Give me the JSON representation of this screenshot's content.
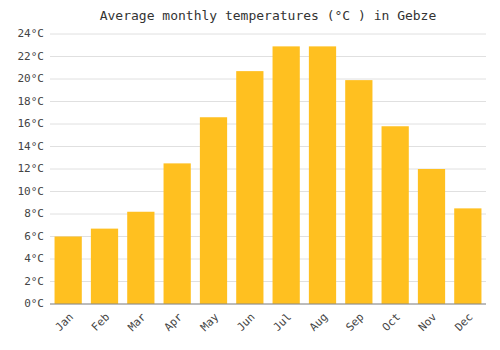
{
  "chart_data": {
    "type": "bar",
    "title": "Average monthly temperatures (°C ) in Gebze",
    "categories": [
      "Jan",
      "Feb",
      "Mar",
      "Apr",
      "May",
      "Jun",
      "Jul",
      "Aug",
      "Sep",
      "Oct",
      "Nov",
      "Dec"
    ],
    "values": [
      6.0,
      6.7,
      8.2,
      12.5,
      16.6,
      20.7,
      22.9,
      22.9,
      19.9,
      15.8,
      12.0,
      8.5
    ],
    "color": "#FFC020",
    "ylim": [
      0,
      24
    ],
    "yticks": [
      {
        "value": 0,
        "label": "0°C"
      },
      {
        "value": 2,
        "label": "2°C"
      },
      {
        "value": 4,
        "label": "4°C"
      },
      {
        "value": 6,
        "label": "6°C"
      },
      {
        "value": 8,
        "label": "8°C"
      },
      {
        "value": 10,
        "label": "10°C"
      },
      {
        "value": 12,
        "label": "12°C"
      },
      {
        "value": 14,
        "label": "14°C"
      },
      {
        "value": 16,
        "label": "16°C"
      },
      {
        "value": 18,
        "label": "18°C"
      },
      {
        "value": 20,
        "label": "20°C"
      },
      {
        "value": 22,
        "label": "22°C"
      },
      {
        "value": 24,
        "label": "24°C"
      }
    ],
    "grid": true
  }
}
